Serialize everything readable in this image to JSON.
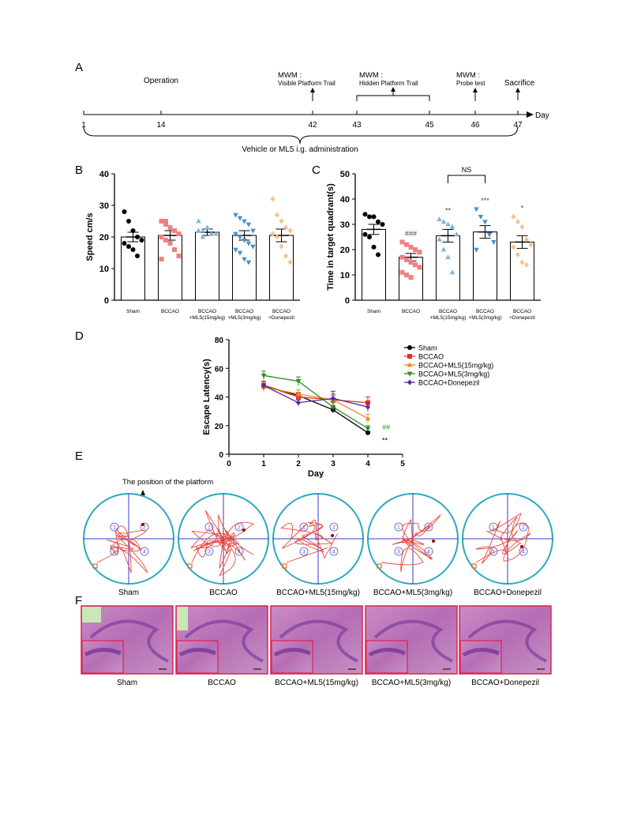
{
  "panels": {
    "a": "A",
    "b": "B",
    "c": "C",
    "d": "D",
    "e": "E",
    "f": "F"
  },
  "timeline": {
    "day_axis_label": "Day",
    "ticks": [
      "1",
      "14",
      "42",
      "43",
      "45",
      "46",
      "47"
    ],
    "events": [
      {
        "line1": "Operation",
        "line2": "",
        "day": 14
      },
      {
        "line1": "MWM :",
        "line2": "Visible Platform Trail",
        "day": 42
      },
      {
        "line1": "MWM :",
        "line2": "Hidden Platform Trail",
        "day": 44
      },
      {
        "line1": "MWM :",
        "line2": "Probe test",
        "day": 46
      },
      {
        "line1": "Sacrifice",
        "line2": "",
        "day": 47
      }
    ],
    "brace_label": "Vehicle or ML5 i.g. administration"
  },
  "groups": {
    "names": [
      "Sham",
      "BCCAO",
      "BCCAO\n+ML5(15mg/kg)",
      "BCCAO\n+ML5(3mg/kg)",
      "BCCAO\n+Donepezil"
    ],
    "tick_line1": [
      "Sham",
      "BCCAO",
      "BCCAO",
      "BCCAO",
      "BCCAO"
    ],
    "tick_line2": [
      "",
      "",
      "+ML5(15mg/kg)",
      "+ML5(3mg/kg)",
      "+Donepezil"
    ],
    "colors": [
      "#000000",
      "#f08080",
      "#7fb6d8",
      "#4a90c8",
      "#f5c28a"
    ]
  },
  "chart_data": [
    {
      "id": "B",
      "type": "bar",
      "ylabel": "Speed cm/s",
      "ylim": [
        0,
        40
      ],
      "yticks": [
        0,
        10,
        20,
        30,
        40
      ],
      "categories": [
        "Sham",
        "BCCAO",
        "BCCAO+ML5(15mg/kg)",
        "BCCAO+ML5(3mg/kg)",
        "BCCAO+Donepezil"
      ],
      "values": [
        20,
        20.5,
        21.5,
        20.5,
        20.5
      ],
      "sem": [
        1.5,
        1.5,
        1.0,
        1.5,
        2.0
      ],
      "points": [
        [
          28,
          25,
          22,
          20,
          19,
          18,
          17,
          16,
          14
        ],
        [
          25,
          24,
          23,
          22,
          21,
          20,
          19,
          18,
          16,
          14,
          13,
          25
        ],
        [
          25,
          22,
          23,
          21,
          21,
          22,
          20
        ],
        [
          27,
          26,
          25,
          24,
          22,
          21,
          20,
          19,
          18,
          17,
          16,
          15,
          13,
          12
        ],
        [
          32,
          27,
          25,
          23,
          22,
          21,
          20,
          17,
          14,
          12
        ]
      ]
    },
    {
      "id": "C",
      "type": "bar",
      "ylabel": "Time in target quadrant(s)",
      "ylim": [
        0,
        50
      ],
      "yticks": [
        0,
        10,
        20,
        30,
        40,
        50
      ],
      "categories": [
        "Sham",
        "BCCAO",
        "BCCAO+ML5(15mg/kg)",
        "BCCAO+ML5(3mg/kg)",
        "BCCAO+Donepezil"
      ],
      "values": [
        28,
        17,
        25.5,
        27,
        23
      ],
      "sem": [
        2.0,
        1.5,
        2.5,
        2.5,
        2.5
      ],
      "points": [
        [
          34,
          33,
          33,
          31,
          30,
          26,
          25,
          21,
          18
        ],
        [
          23,
          22,
          21,
          20,
          19,
          17,
          16,
          15,
          14,
          13,
          11,
          10,
          9
        ],
        [
          32,
          31,
          30,
          29,
          26,
          24,
          20,
          17,
          11
        ],
        [
          36,
          33,
          31,
          26,
          23,
          20
        ],
        [
          33,
          31,
          29,
          24,
          22,
          21,
          18,
          15,
          14
        ]
      ],
      "annotations": [
        {
          "group": 1,
          "text": "###"
        },
        {
          "group": 2,
          "text": "**"
        },
        {
          "group": 3,
          "text": "***"
        },
        {
          "group": 4,
          "text": "*"
        }
      ],
      "bracket": {
        "from": 2,
        "to": 3,
        "text": "NS"
      }
    },
    {
      "id": "D",
      "type": "line",
      "xlabel": "Day",
      "ylabel": "Escape Latency(s)",
      "xlim": [
        0,
        5
      ],
      "ylim": [
        0,
        80
      ],
      "xticks": [
        0,
        1,
        2,
        3,
        4,
        5
      ],
      "yticks": [
        0,
        20,
        40,
        60,
        80
      ],
      "x": [
        1,
        2,
        3,
        4
      ],
      "series": [
        {
          "name": "Sham",
          "values": [
            48,
            41,
            31,
            15
          ],
          "err": [
            3,
            2,
            2,
            1
          ],
          "color": "#000000",
          "marker": "circle"
        },
        {
          "name": "BCCAO",
          "values": [
            48,
            40,
            38,
            36
          ],
          "err": [
            3,
            2,
            4,
            4
          ],
          "color": "#e0302a",
          "marker": "square"
        },
        {
          "name": "BCCAO+ML5(15mg/kg)",
          "values": [
            47,
            42,
            38,
            25
          ],
          "err": [
            3,
            3,
            3,
            3
          ],
          "color": "#f08a1a",
          "marker": "triangle-up"
        },
        {
          "name": "BCCAO+ML5(3mg/kg)",
          "values": [
            55,
            51,
            33,
            18
          ],
          "err": [
            3,
            3,
            3,
            2
          ],
          "color": "#2e8b22",
          "marker": "triangle-down"
        },
        {
          "name": "BCCAO+Donepezil",
          "values": [
            48,
            36,
            39,
            33
          ],
          "err": [
            3,
            2,
            5,
            3
          ],
          "color": "#5b2a9b",
          "marker": "diamond"
        }
      ],
      "annotations": [
        {
          "text": "##",
          "color": "#2e8b22"
        },
        {
          "text": "**",
          "color": "#000000"
        }
      ]
    }
  ],
  "trace_panel": {
    "pointer_label": "The position of the platform",
    "captions": [
      "Sham",
      "BCCAO",
      "BCCAO+ML5(15mg/kg)",
      "BCCAO+ML5(3mg/kg)",
      "BCCAO+Donepezil"
    ],
    "quadrant_numbers": [
      "1",
      "2",
      "3",
      "4"
    ]
  },
  "histology_panel": {
    "captions": [
      "Sham",
      "BCCAO",
      "BCCAO+ML5(15mg/kg)",
      "BCCAO+ML5(3mg/kg)",
      "BCCAO+Donepezil"
    ]
  }
}
